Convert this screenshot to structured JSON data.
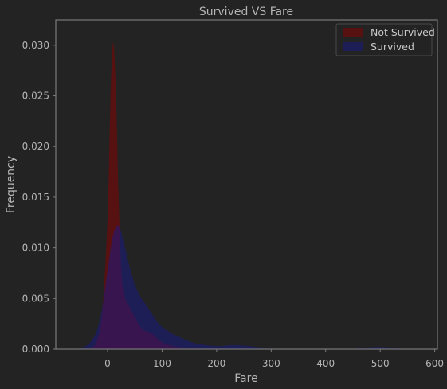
{
  "chart_data": {
    "type": "area",
    "title": "Survived VS Fare",
    "xlabel": "Fare",
    "ylabel": "Frequency",
    "xlim": [
      -95,
      605
    ],
    "ylim": [
      0,
      0.0325
    ],
    "xticks": [
      0,
      100,
      200,
      300,
      400,
      500,
      600
    ],
    "yticks": [
      0.0,
      0.005,
      0.01,
      0.015,
      0.02,
      0.025,
      0.03
    ],
    "ytick_labels": [
      "0.000",
      "0.005",
      "0.010",
      "0.015",
      "0.020",
      "0.025",
      "0.030"
    ],
    "grid": false,
    "legend_position": "top-right",
    "series": [
      {
        "name": "Not Survived",
        "color": "#8b0000",
        "x": [
          -40,
          -30,
          -20,
          -10,
          0,
          5,
          10,
          15,
          20,
          25,
          30,
          40,
          50,
          60,
          70,
          80,
          90,
          100,
          120,
          150,
          200,
          260
        ],
        "y": [
          0,
          0.0001,
          0.0008,
          0.0035,
          0.013,
          0.024,
          0.0302,
          0.026,
          0.0155,
          0.008,
          0.0055,
          0.0042,
          0.0032,
          0.0022,
          0.0018,
          0.0016,
          0.0011,
          0.0007,
          0.0003,
          0.0001,
          2e-05,
          0
        ]
      },
      {
        "name": "Survived",
        "color": "#1a1a8c",
        "x": [
          -60,
          -50,
          -40,
          -30,
          -20,
          -10,
          0,
          10,
          20,
          30,
          40,
          50,
          60,
          70,
          80,
          90,
          100,
          120,
          140,
          160,
          200,
          230,
          260,
          300,
          350,
          400,
          450,
          480,
          500,
          520,
          550
        ],
        "y": [
          0,
          0.0001,
          0.0003,
          0.0008,
          0.0018,
          0.004,
          0.0078,
          0.0112,
          0.0122,
          0.0105,
          0.0082,
          0.0064,
          0.0052,
          0.0044,
          0.0036,
          0.0028,
          0.0022,
          0.0015,
          0.001,
          0.0006,
          0.0003,
          0.0004,
          0.0003,
          5e-05,
          0,
          0,
          5e-05,
          0.00018,
          0.00022,
          0.00015,
          0
        ]
      }
    ]
  },
  "colors": {
    "background": "#232323",
    "axes_edge": "#7a7a7a",
    "text": "#b5b5b5",
    "not_survived": "#8b0000",
    "survived": "#1a1a8c"
  }
}
